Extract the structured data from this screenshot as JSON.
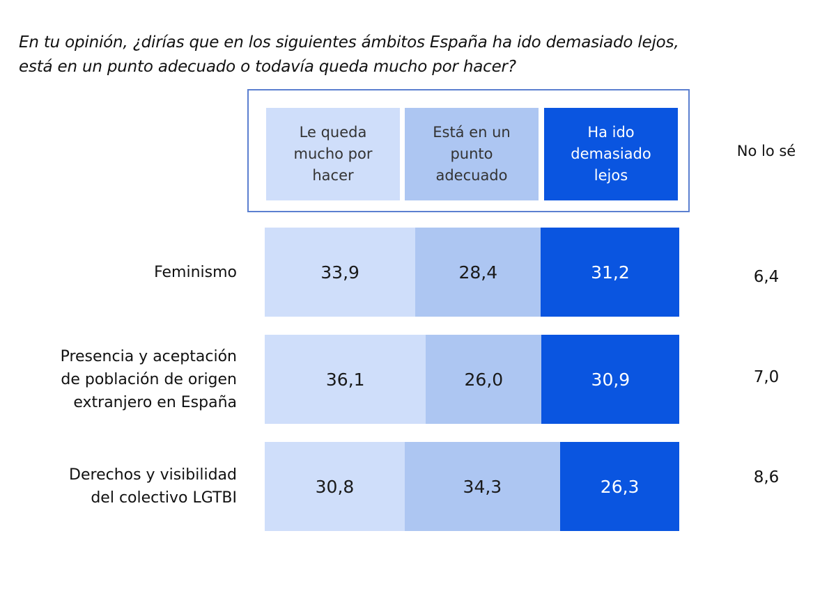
{
  "chart_data": {
    "type": "bar",
    "orientation": "horizontal",
    "stacked": true,
    "title_lines": [
      "En tu opinión, ¿dirías que en los siguientes ámbitos España ha ido demasiado lejos,",
      "está en un punto adecuado o todavía queda mucho por hacer?"
    ],
    "categories": [
      "Feminismo",
      "Presencia y aceptación de población de origen extranjero en España",
      "Derechos y visibilidad del colectivo LGTBI"
    ],
    "category_lines": [
      [
        "Feminismo"
      ],
      [
        "Presencia y aceptación",
        "de población de origen",
        "extranjero en España"
      ],
      [
        "Derechos y visibilidad",
        "del colectivo LGTBI"
      ]
    ],
    "series": [
      {
        "name": "Le queda mucho por hacer",
        "name_lines": [
          "Le queda",
          "mucho por",
          "hacer"
        ],
        "values": [
          "33,9",
          "36,1",
          "30,8"
        ],
        "color": "#cfdefa"
      },
      {
        "name": "Está en un punto adecuado",
        "name_lines": [
          "Está en un",
          "punto",
          "adecuado"
        ],
        "values": [
          "28,4",
          "26,0",
          "34,3"
        ],
        "color": "#adc6f2"
      },
      {
        "name": "Ha ido demasiado lejos",
        "name_lines": [
          "Ha ido",
          "demasiado",
          "lejos"
        ],
        "values": [
          "31,2",
          "30,9",
          "26,3"
        ],
        "color": "#0a55e0"
      }
    ],
    "no_sabe": {
      "name": "No lo sé",
      "values": [
        "6,4",
        "7,0",
        "8,6"
      ]
    },
    "legend_placement": "top",
    "grid": false,
    "border_color": "#5b7fd0"
  }
}
